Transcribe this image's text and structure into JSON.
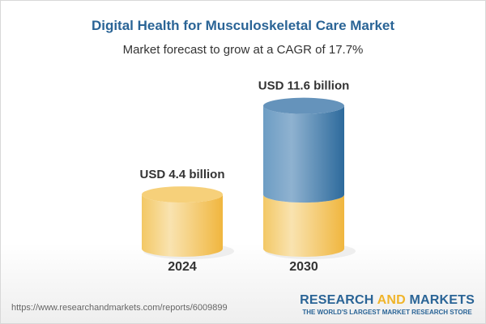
{
  "title": "Digital Health for Musculoskeletal Care Market",
  "subtitle": "Market forecast to grow at a CAGR of 17.7%",
  "chart_data": {
    "type": "bar",
    "style": "3d-cylinder",
    "categories": [
      "2024",
      "2030"
    ],
    "values": [
      4.4,
      11.6
    ],
    "data_labels": [
      "USD 4.4 billion",
      "USD 11.6 billion"
    ],
    "unit": "USD billion",
    "colors": {
      "base": "#f2c14e",
      "growth": "#3f7cb0"
    }
  },
  "footer": {
    "url": "https://www.researchandmarkets.com/reports/6009899",
    "logo_research": "RESEARCH",
    "logo_and": "AND",
    "logo_markets": "MARKETS",
    "logo_tagline": "THE WORLD'S LARGEST MARKET RESEARCH STORE"
  }
}
